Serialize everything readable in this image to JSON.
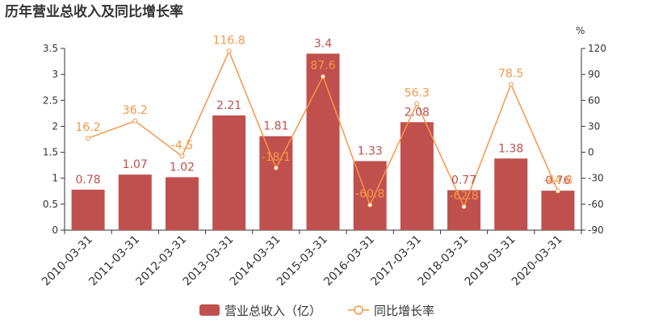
{
  "chart_data": {
    "type": "bar",
    "title": "历年营业总收入及同比增长率",
    "categories": [
      "2010-03-31",
      "2011-03-31",
      "2012-03-31",
      "2013-03-31",
      "2014-03-31",
      "2015-03-31",
      "2016-03-31",
      "2017-03-31",
      "2018-03-31",
      "2019-03-31",
      "2020-03-31"
    ],
    "series": [
      {
        "name": "营业总收入（亿）",
        "type": "bar",
        "axis": "left",
        "values": [
          0.78,
          1.07,
          1.02,
          2.21,
          1.81,
          3.4,
          1.33,
          2.08,
          0.77,
          1.38,
          0.76
        ],
        "labels": [
          "0.78",
          "1.07",
          "1.02",
          "2.21",
          "1.81",
          "3.4",
          "1.33",
          "2.08",
          "0.77",
          "1.38",
          "0.76"
        ]
      },
      {
        "name": "同比增长率",
        "type": "line",
        "axis": "right",
        "values": [
          16.2,
          36.2,
          -4.5,
          116.8,
          -18.1,
          87.6,
          -60.8,
          56.3,
          -62.8,
          78.5,
          -44.8
        ],
        "labels": [
          "16.2",
          "36.2",
          "-4.5",
          "116.8",
          "-18.1",
          "87.6",
          "-60.8",
          "56.3",
          "-62.8",
          "78.5",
          "-44.8"
        ]
      }
    ],
    "left_axis": {
      "ylim": [
        0,
        3.5
      ],
      "ticks": [
        "0",
        "0.5",
        "1",
        "1.5",
        "2",
        "2.5",
        "3",
        "3.5"
      ]
    },
    "right_axis": {
      "unit": "%",
      "ylim": [
        -90,
        120
      ],
      "ticks": [
        "-90",
        "-60",
        "-30",
        "0",
        "30",
        "60",
        "90",
        "120"
      ]
    },
    "grid": false,
    "legend_position": "bottom-center",
    "colors": {
      "bar": "#c0504d",
      "line": "#f79646",
      "axis": "#333333",
      "title": "#333333"
    }
  }
}
